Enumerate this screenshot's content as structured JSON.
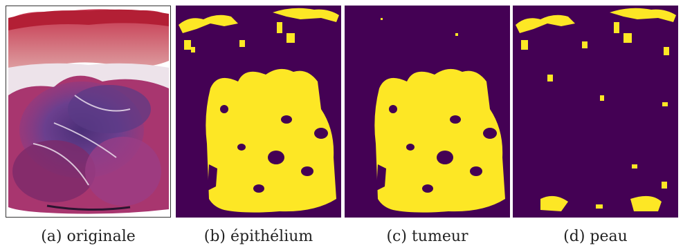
{
  "figure": {
    "panels": [
      {
        "id": "a",
        "caption_label": "(a)",
        "caption_text": "originale",
        "kind": "histology-slide"
      },
      {
        "id": "b",
        "caption_label": "(b)",
        "caption_text": "épithélium",
        "kind": "segmentation-mask"
      },
      {
        "id": "c",
        "caption_label": "(c)",
        "caption_text": "tumeur",
        "kind": "segmentation-mask"
      },
      {
        "id": "d",
        "caption_label": "(d)",
        "caption_text": "peau",
        "kind": "segmentation-mask"
      }
    ],
    "colors": {
      "mask_background": "#440154",
      "mask_foreground": "#fde725",
      "tissue_pink": "#c8356a",
      "tissue_purple": "#5a3a86",
      "tissue_red": "#b9202e"
    }
  }
}
